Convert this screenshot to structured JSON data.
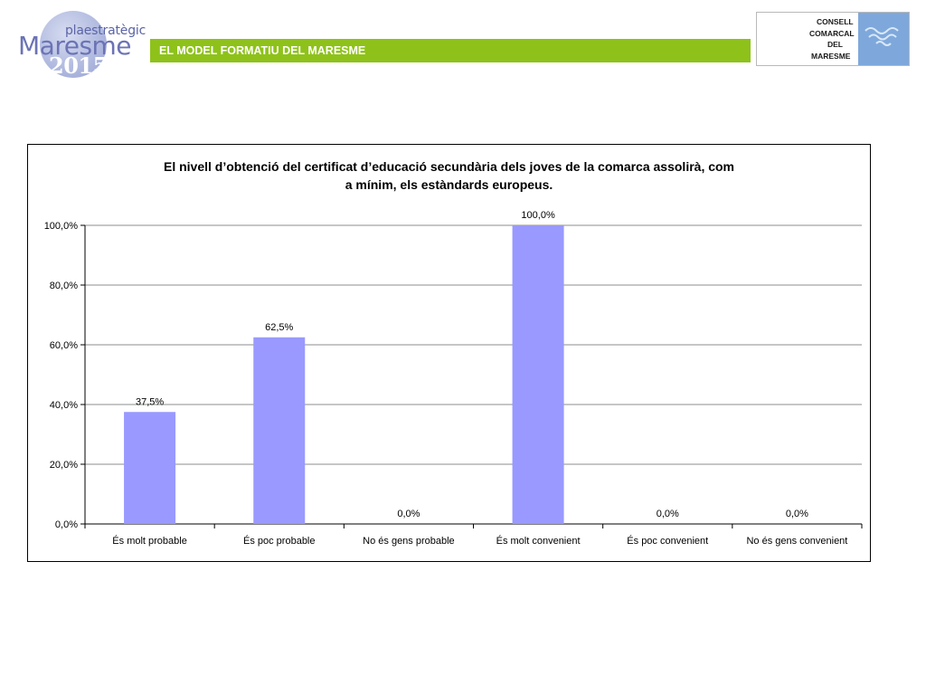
{
  "header": {
    "logo": {
      "pla": "plaestratègic",
      "maresme": "Maresme",
      "year": "2015"
    },
    "section_title": "EL MODEL FORMATIU DEL MARESME",
    "council": {
      "lines": [
        "CONSELL",
        "COMARCAL",
        "DEL",
        "MARESME"
      ]
    }
  },
  "chart": {
    "title_line1": "El nivell d’obtenció del certificat d’educació secundària dels joves de la comarca assolirà, com",
    "title_line2": "a mínim, els estàndards europeus."
  },
  "chart_data": {
    "type": "bar",
    "title": "El nivell d’obtenció del certificat d’educació secundària dels joves de la comarca assolirà, com a mínim, els estàndards europeus.",
    "categories": [
      "És molt probable",
      "És poc probable",
      "No és gens probable",
      "És molt convenient",
      "És poc convenient",
      "No és gens convenient"
    ],
    "values": [
      37.5,
      62.5,
      0.0,
      100.0,
      0.0,
      0.0
    ],
    "data_labels": [
      "37,5%",
      "62,5%",
      "0,0%",
      "100,0%",
      "0,0%",
      "0,0%"
    ],
    "ylim": [
      0,
      100
    ],
    "yticks": [
      0,
      20,
      40,
      60,
      80,
      100
    ],
    "ytick_labels": [
      "0,0%",
      "20,0%",
      "40,0%",
      "60,0%",
      "80,0%",
      "100,0%"
    ],
    "grid": true,
    "legend": "none",
    "bar_color": "#9999ff"
  }
}
